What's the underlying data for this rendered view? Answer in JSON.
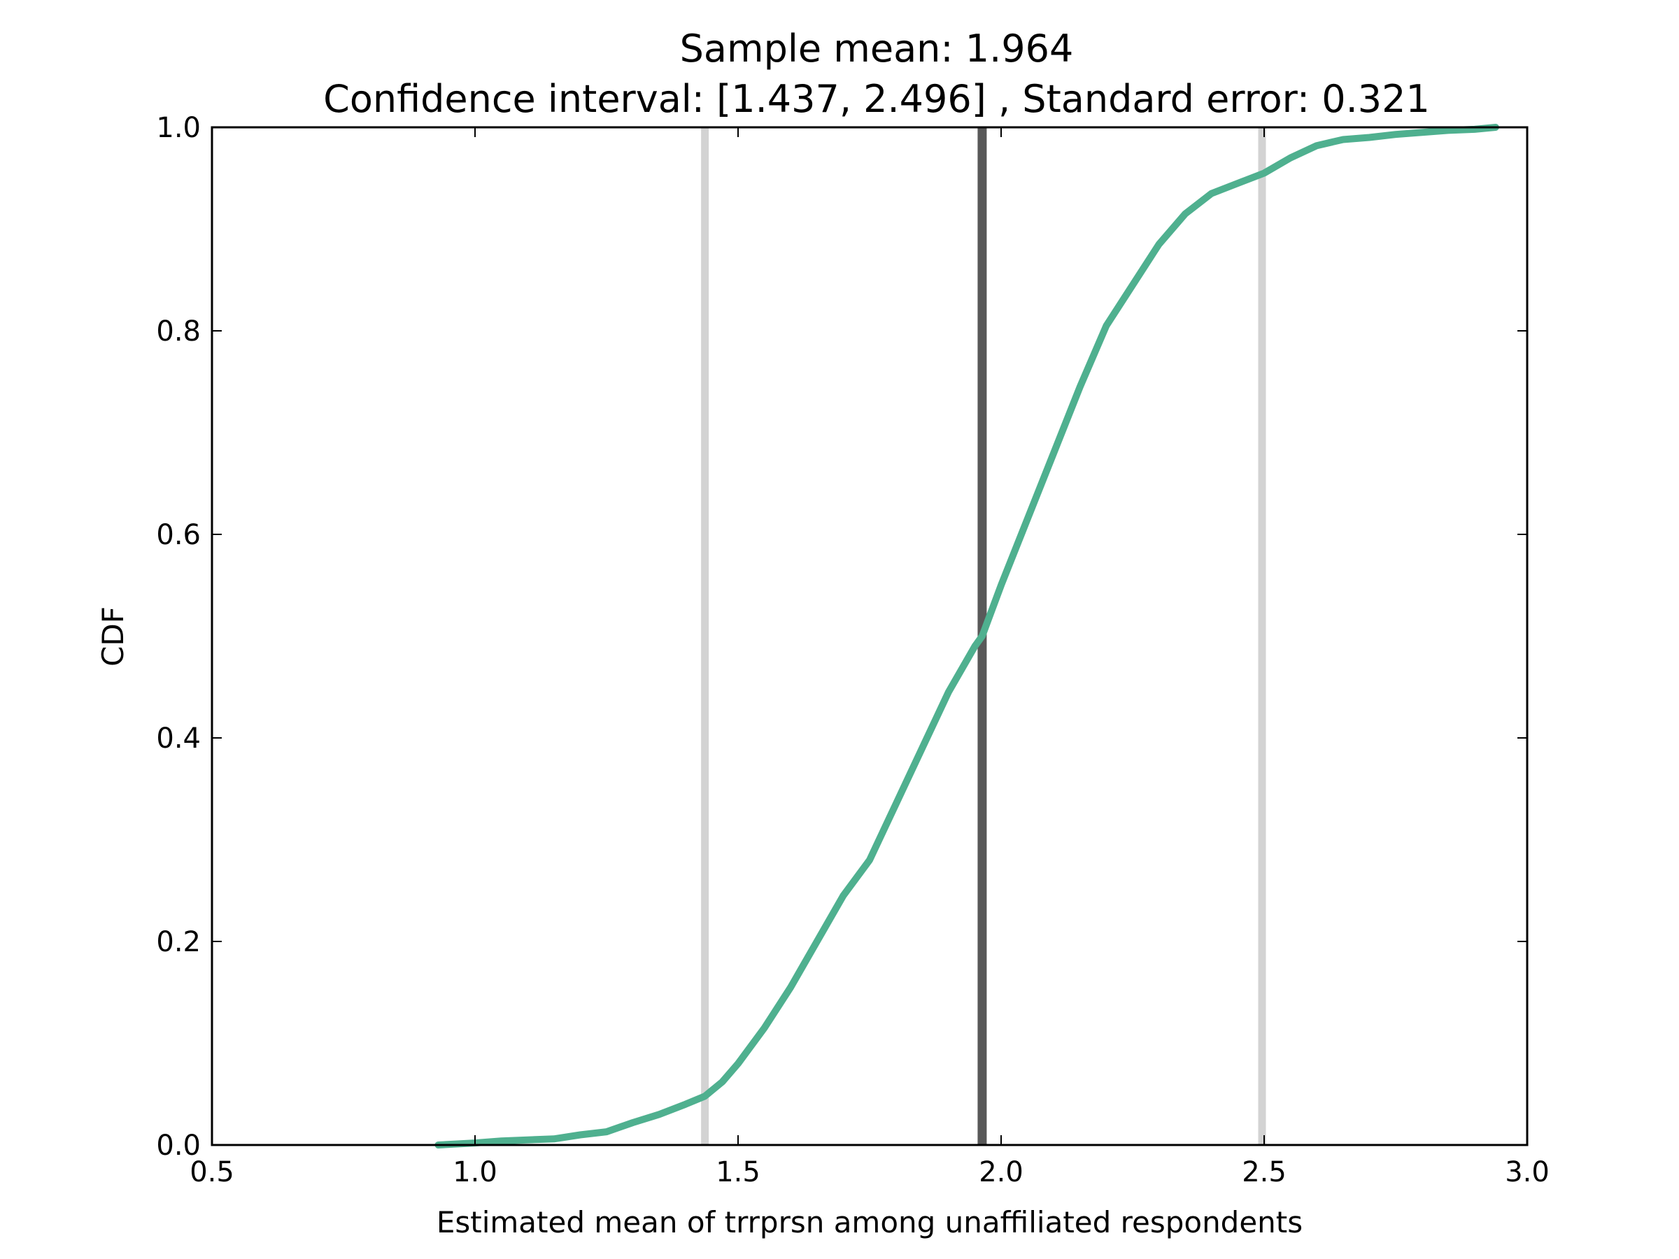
{
  "chart_data": {
    "type": "line",
    "title_lines": [
      "Sample mean: 1.964",
      "Confidence interval: [1.437, 2.496] , Standard error: 0.321"
    ],
    "xlabel": "Estimated mean of trrprsn among unaffiliated respondents",
    "ylabel": "CDF",
    "xlim": [
      0.5,
      3.0
    ],
    "ylim": [
      0.0,
      1.0
    ],
    "xticks": [
      "0.5",
      "1.0",
      "1.5",
      "2.0",
      "2.5",
      "3.0"
    ],
    "yticks": [
      "0.0",
      "0.2",
      "0.4",
      "0.6",
      "0.8",
      "1.0"
    ],
    "grid": false,
    "reference_lines": [
      {
        "x": 1.437,
        "color": "#d3d3d3"
      },
      {
        "x": 1.964,
        "color": "#595959"
      },
      {
        "x": 2.496,
        "color": "#d3d3d3"
      }
    ],
    "series": [
      {
        "color": "#4fb08f",
        "x": [
          0.93,
          1.0,
          1.05,
          1.1,
          1.15,
          1.2,
          1.25,
          1.3,
          1.35,
          1.4,
          1.437,
          1.47,
          1.5,
          1.55,
          1.6,
          1.65,
          1.7,
          1.75,
          1.8,
          1.85,
          1.9,
          1.95,
          1.964,
          2.0,
          2.05,
          2.1,
          2.15,
          2.2,
          2.25,
          2.3,
          2.35,
          2.4,
          2.45,
          2.5,
          2.55,
          2.6,
          2.65,
          2.7,
          2.75,
          2.8,
          2.85,
          2.9,
          2.94
        ],
        "y": [
          0.0,
          0.002,
          0.004,
          0.005,
          0.006,
          0.01,
          0.013,
          0.022,
          0.03,
          0.04,
          0.048,
          0.062,
          0.08,
          0.115,
          0.155,
          0.2,
          0.245,
          0.28,
          0.335,
          0.39,
          0.445,
          0.49,
          0.5,
          0.55,
          0.615,
          0.68,
          0.745,
          0.805,
          0.845,
          0.885,
          0.915,
          0.935,
          0.945,
          0.955,
          0.97,
          0.982,
          0.988,
          0.99,
          0.993,
          0.995,
          0.997,
          0.998,
          1.0
        ]
      }
    ]
  }
}
